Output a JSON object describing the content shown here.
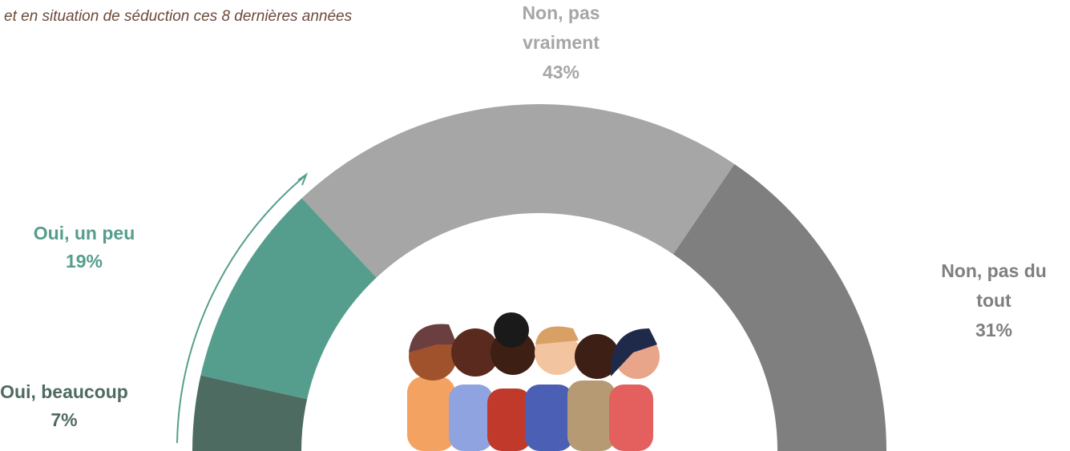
{
  "chart_data": {
    "type": "half-donut",
    "subtitle": "et en situation de séduction ces 8 dernières années",
    "categories": [
      "Oui, beaucoup",
      "Oui, un peu",
      "Non, pas vraiment",
      "Non, pas du tout"
    ],
    "values": [
      7,
      19,
      43,
      31
    ],
    "value_labels": [
      "7%",
      "19%",
      "43%",
      "31%"
    ],
    "colors": [
      "#4e6b62",
      "#559e8d",
      "#a6a6a6",
      "#7f7f7f"
    ]
  }
}
